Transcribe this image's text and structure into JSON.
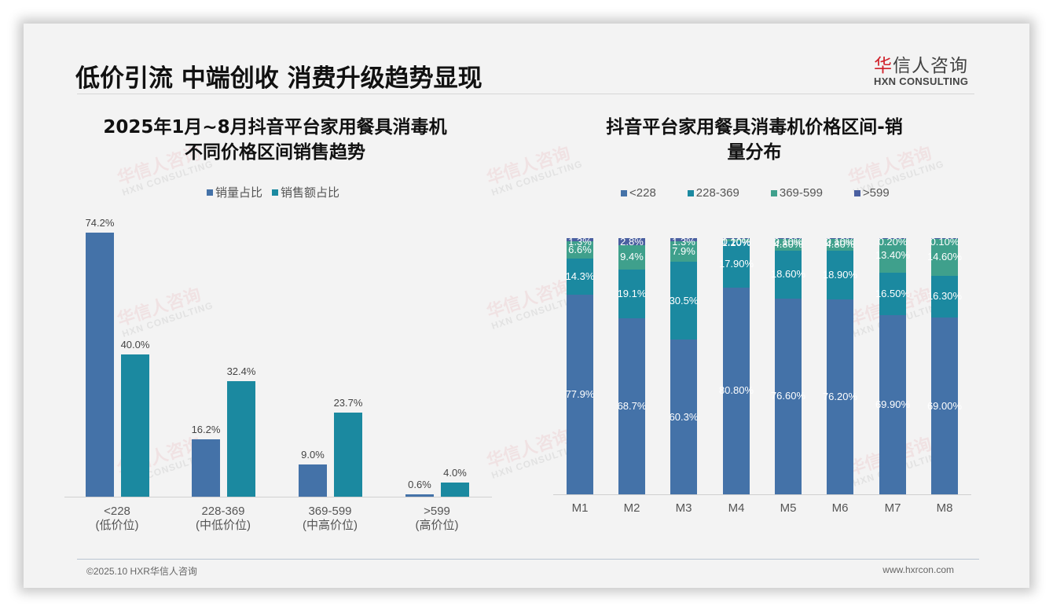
{
  "header": {
    "title": "低价引流 中端创收 消费升级趋势显现",
    "logo_cn_accent": "华",
    "logo_cn_rest": "信人咨询",
    "logo_en": "HXN CONSULTING"
  },
  "left_chart": {
    "title_line1": "2025年1月~8月抖音平台家用餐具消毒机",
    "title_line2": "不同价格区间销售趋势",
    "legend": [
      "销量占比",
      "销售额占比"
    ],
    "categories": [
      {
        "range": "<228",
        "tier": "(低价位)"
      },
      {
        "range": "228-369",
        "tier": "(中低价位)"
      },
      {
        "range": "369-599",
        "tier": "(中高价位)"
      },
      {
        "range": ">599",
        "tier": "(高价位)"
      }
    ],
    "labels_volume": [
      "74.2%",
      "16.2%",
      "9.0%",
      "0.6%"
    ],
    "labels_revenue": [
      "40.0%",
      "32.4%",
      "23.7%",
      "4.0%"
    ]
  },
  "right_chart": {
    "title_line1": "抖音平台家用餐具消毒机价格区间-销",
    "title_line2": "量分布",
    "legend": [
      "<228",
      "228-369",
      "369-599",
      ">599"
    ],
    "months": [
      "M1",
      "M2",
      "M3",
      "M4",
      "M5",
      "M6",
      "M7",
      "M8"
    ],
    "labels": [
      [
        "77.9%",
        "14.3%",
        "6.6%",
        "1.3%"
      ],
      [
        "68.7%",
        "19.1%",
        "9.4%",
        "2.8%"
      ],
      [
        "60.3%",
        "30.5%",
        "7.9%",
        "1.3%"
      ],
      [
        "80.80%",
        "17.90%",
        "1.20%",
        "0.10%"
      ],
      [
        "76.60%",
        "18.60%",
        "4.80%",
        "0.10%"
      ],
      [
        "76.20%",
        "18.90%",
        "4.80%",
        "0.10%"
      ],
      [
        "69.90%",
        "16.50%",
        "13.40%",
        "0.20%"
      ],
      [
        "69.00%",
        "16.30%",
        "14.60%",
        "0.10%"
      ]
    ]
  },
  "colors": {
    "series1": "#4472a8",
    "series2": "#1b89a0",
    "series3": "#3fa08c",
    "series4": "#4a5fa0",
    "background": "#f3f3f3"
  },
  "footer": {
    "copyright": "©2025.10 HXR华信人咨询",
    "website": "www.hxrcon.com"
  },
  "watermark": {
    "cn": "华信人咨询",
    "en": "HXN CONSULTING"
  },
  "chart_data": [
    {
      "type": "bar",
      "title": "2025年1月~8月抖音平台家用餐具消毒机不同价格区间销售趋势",
      "categories": [
        "<228 (低价位)",
        "228-369 (中低价位)",
        "369-599 (中高价位)",
        ">599 (高价位)"
      ],
      "series": [
        {
          "name": "销量占比",
          "values": [
            74.2,
            16.2,
            9.0,
            0.6
          ]
        },
        {
          "name": "销售额占比",
          "values": [
            40.0,
            32.4,
            23.7,
            4.0
          ]
        }
      ],
      "xlabel": "",
      "ylabel": "",
      "ylim": [
        0,
        80
      ],
      "legend_position": "top",
      "grid": false,
      "unit": "%"
    },
    {
      "type": "bar",
      "stacked": true,
      "title": "抖音平台家用餐具消毒机价格区间-销量分布",
      "categories": [
        "M1",
        "M2",
        "M3",
        "M4",
        "M5",
        "M6",
        "M7",
        "M8"
      ],
      "series": [
        {
          "name": "<228",
          "values": [
            77.9,
            68.7,
            60.3,
            80.8,
            76.6,
            76.2,
            69.9,
            69.0
          ]
        },
        {
          "name": "228-369",
          "values": [
            14.3,
            19.1,
            30.5,
            17.9,
            18.6,
            18.9,
            16.5,
            16.3
          ]
        },
        {
          "name": "369-599",
          "values": [
            6.6,
            9.4,
            7.9,
            1.2,
            4.8,
            4.8,
            13.4,
            14.6
          ]
        },
        {
          "name": ">599",
          "values": [
            1.3,
            2.8,
            1.3,
            0.1,
            0.1,
            0.1,
            0.2,
            0.1
          ]
        }
      ],
      "xlabel": "",
      "ylabel": "",
      "ylim": [
        0,
        100
      ],
      "legend_position": "top",
      "grid": false,
      "unit": "%"
    }
  ]
}
